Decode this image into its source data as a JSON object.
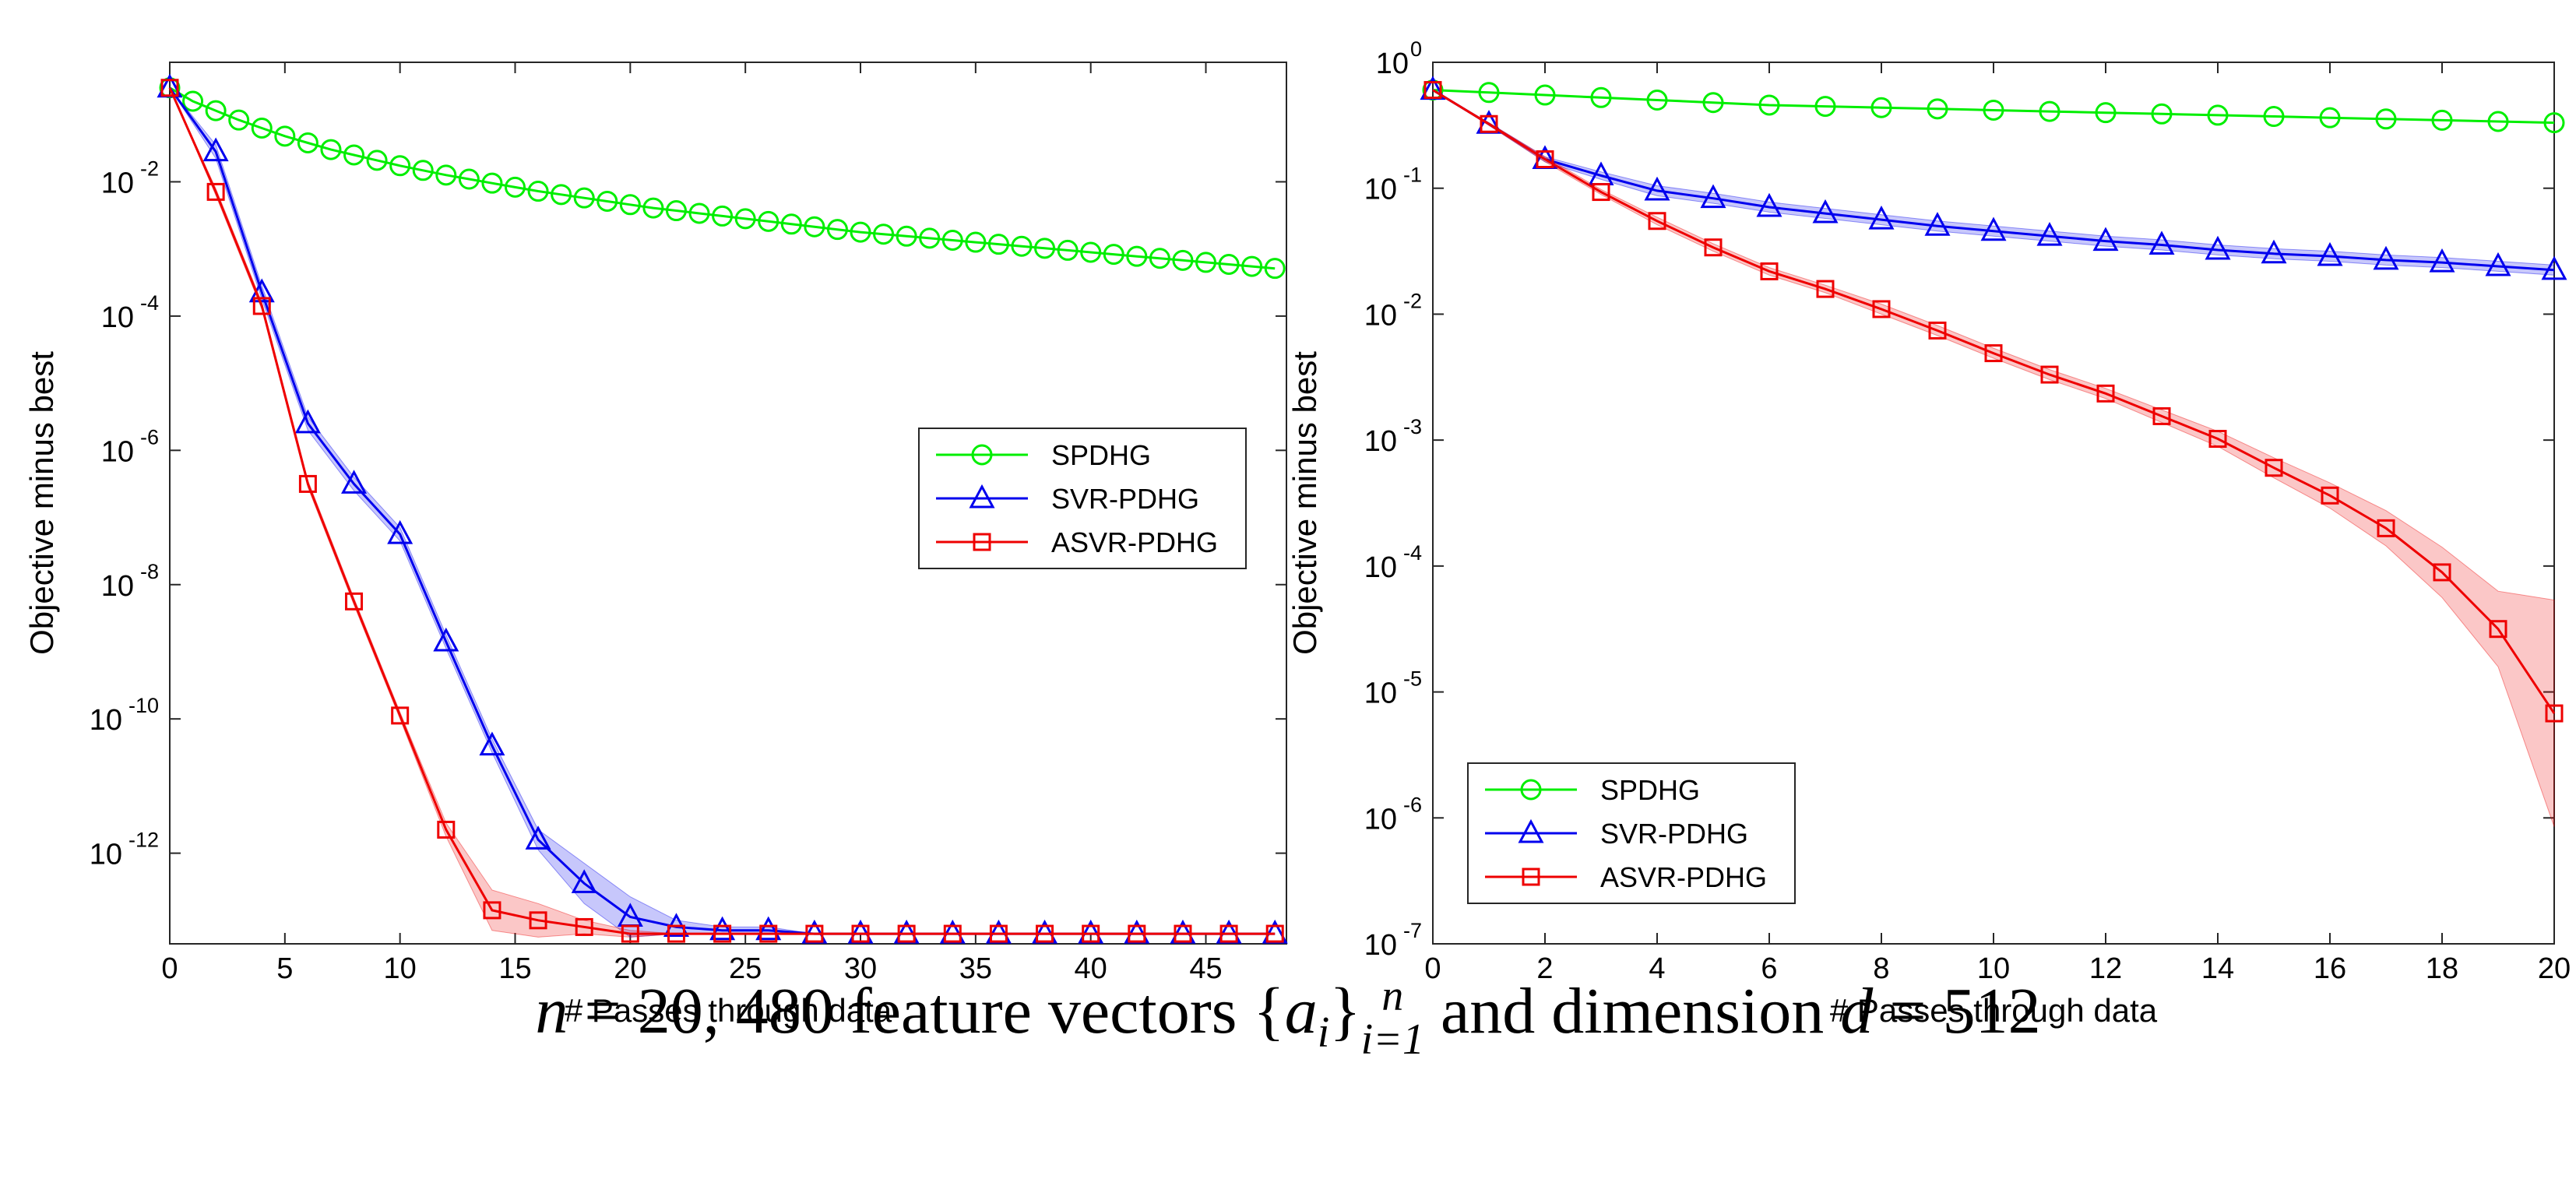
{
  "caption": {
    "n_var": "n",
    "n_eq": " = 20, 480 feature vectors {",
    "a_var": "a",
    "a_sub": "i",
    "close": "}",
    "set_sup": "n",
    "set_sub": "i=1",
    "dim_text": " and dimension ",
    "d_var": "d",
    "d_eq": " = 512"
  },
  "chart_data": [
    {
      "type": "line",
      "title": "",
      "xlabel": "# Passes through data",
      "ylabel": "Objective minus best",
      "yscale": "log",
      "xlim": [
        0,
        48.5
      ],
      "ylim_exp": [
        -13.35,
        -0.22
      ],
      "xticks": [
        0,
        5,
        10,
        15,
        20,
        25,
        30,
        35,
        40,
        45
      ],
      "yticks": [
        {
          "exp": -2,
          "label": "-2"
        },
        {
          "exp": -4,
          "label": "-4"
        },
        {
          "exp": -6,
          "label": "-6"
        },
        {
          "exp": -8,
          "label": "-8"
        },
        {
          "exp": -10,
          "label": "-10"
        },
        {
          "exp": -12,
          "label": "-12"
        }
      ],
      "tick_base": "10",
      "legend_position": "center-right",
      "series": [
        {
          "name": "SPDHG",
          "color": "#00ee00",
          "marker": "circle",
          "x": [
            0,
            1,
            2,
            3,
            4,
            5,
            6,
            7,
            8,
            9,
            10,
            11,
            12,
            13,
            14,
            15,
            16,
            17,
            18,
            19,
            20,
            21,
            22,
            23,
            24,
            25,
            26,
            27,
            28,
            29,
            30,
            31,
            32,
            33,
            34,
            35,
            36,
            37,
            38,
            39,
            40,
            41,
            42,
            43,
            44,
            45,
            46,
            47,
            48
          ],
          "log10_y": [
            -0.6,
            -0.8,
            -0.94,
            -1.08,
            -1.2,
            -1.32,
            -1.42,
            -1.52,
            -1.6,
            -1.68,
            -1.76,
            -1.83,
            -1.9,
            -1.96,
            -2.02,
            -2.08,
            -2.14,
            -2.19,
            -2.24,
            -2.29,
            -2.34,
            -2.39,
            -2.43,
            -2.47,
            -2.51,
            -2.55,
            -2.59,
            -2.63,
            -2.67,
            -2.71,
            -2.75,
            -2.78,
            -2.81,
            -2.84,
            -2.87,
            -2.9,
            -2.93,
            -2.96,
            -2.99,
            -3.02,
            -3.05,
            -3.08,
            -3.11,
            -3.14,
            -3.17,
            -3.2,
            -3.23,
            -3.26,
            -3.29
          ]
        },
        {
          "name": "SVR-PDHG",
          "color": "#0000ee",
          "marker": "triangle",
          "x": [
            0,
            2,
            4,
            6,
            8,
            10,
            12,
            14,
            16,
            18,
            20,
            22,
            24,
            26,
            28,
            30,
            32,
            34,
            36,
            38,
            40,
            42,
            44,
            46,
            48
          ],
          "log10_y": [
            -0.6,
            -1.55,
            -3.65,
            -5.6,
            -6.5,
            -7.25,
            -8.85,
            -10.4,
            -11.8,
            -12.45,
            -12.95,
            -13.1,
            -13.15,
            -13.15,
            -13.2,
            -13.2,
            -13.2,
            -13.2,
            -13.2,
            -13.2,
            -13.2,
            -13.2,
            -13.2,
            -13.2,
            -13.2
          ],
          "band": [
            0,
            0.1,
            0.1,
            0.1,
            0.1,
            0.1,
            0.1,
            0.1,
            0.15,
            0.3,
            0.3,
            0.1,
            0.05,
            0.05,
            0,
            0,
            0,
            0,
            0,
            0,
            0,
            0,
            0,
            0,
            0
          ]
        },
        {
          "name": "ASVR-PDHG",
          "color": "#ee0000",
          "marker": "square",
          "x": [
            0,
            2,
            4,
            6,
            8,
            10,
            12,
            14,
            16,
            18,
            20,
            22,
            24,
            26,
            28,
            30,
            32,
            34,
            36,
            38,
            40,
            42,
            44,
            46,
            48
          ],
          "log10_y": [
            -0.6,
            -2.15,
            -3.85,
            -6.5,
            -8.25,
            -9.95,
            -11.65,
            -12.85,
            -13.0,
            -13.1,
            -13.2,
            -13.2,
            -13.2,
            -13.2,
            -13.2,
            -13.2,
            -13.2,
            -13.2,
            -13.2,
            -13.2,
            -13.2,
            -13.2,
            -13.2,
            -13.2,
            -13.2
          ],
          "band": [
            0,
            0.05,
            0.05,
            0.05,
            0.05,
            0.05,
            0.1,
            0.3,
            0.25,
            0.1,
            0.05,
            0,
            0,
            0,
            0,
            0,
            0,
            0,
            0,
            0,
            0,
            0,
            0,
            0,
            0
          ]
        }
      ]
    },
    {
      "type": "line",
      "title": "",
      "xlabel": "# Passes through data",
      "ylabel": "Objective minus best",
      "yscale": "log",
      "xlim": [
        0,
        20
      ],
      "ylim_exp": [
        -7,
        0
      ],
      "xticks": [
        0,
        2,
        4,
        6,
        8,
        10,
        12,
        14,
        16,
        18,
        20
      ],
      "yticks": [
        {
          "exp": 0,
          "label": "0"
        },
        {
          "exp": -1,
          "label": "-1"
        },
        {
          "exp": -2,
          "label": "-2"
        },
        {
          "exp": -3,
          "label": "-3"
        },
        {
          "exp": -4,
          "label": "-4"
        },
        {
          "exp": -5,
          "label": "-5"
        },
        {
          "exp": -6,
          "label": "-6"
        },
        {
          "exp": -7,
          "label": "-7"
        }
      ],
      "tick_base": "10",
      "legend_position": "bottom-left",
      "series": [
        {
          "name": "SPDHG",
          "color": "#00ee00",
          "marker": "circle",
          "x": [
            0,
            1,
            2,
            3,
            4,
            5,
            6,
            7,
            8,
            9,
            10,
            11,
            12,
            13,
            14,
            15,
            16,
            17,
            18,
            19,
            20
          ],
          "log10_y": [
            -0.22,
            -0.24,
            -0.26,
            -0.28,
            -0.3,
            -0.32,
            -0.34,
            -0.35,
            -0.36,
            -0.37,
            -0.38,
            -0.39,
            -0.4,
            -0.41,
            -0.42,
            -0.43,
            -0.44,
            -0.45,
            -0.46,
            -0.47,
            -0.48
          ]
        },
        {
          "name": "SVR-PDHG",
          "color": "#0000ee",
          "marker": "triangle",
          "x": [
            0,
            1,
            2,
            3,
            4,
            5,
            6,
            7,
            8,
            9,
            10,
            11,
            12,
            13,
            14,
            15,
            16,
            17,
            18,
            19,
            20
          ],
          "log10_y": [
            -0.22,
            -0.49,
            -0.77,
            -0.9,
            -1.02,
            -1.08,
            -1.15,
            -1.2,
            -1.25,
            -1.3,
            -1.34,
            -1.38,
            -1.42,
            -1.45,
            -1.49,
            -1.52,
            -1.54,
            -1.57,
            -1.59,
            -1.62,
            -1.65
          ],
          "band": [
            0,
            0.01,
            0.02,
            0.03,
            0.04,
            0.04,
            0.04,
            0.04,
            0.04,
            0.04,
            0.04,
            0.04,
            0.04,
            0.04,
            0.04,
            0.04,
            0.04,
            0.04,
            0.04,
            0.04,
            0.04
          ]
        },
        {
          "name": "ASVR-PDHG",
          "color": "#ee0000",
          "marker": "square",
          "x": [
            0,
            1,
            2,
            3,
            4,
            5,
            6,
            7,
            8,
            9,
            10,
            11,
            12,
            13,
            14,
            15,
            16,
            17,
            18,
            19,
            20
          ],
          "log10_y": [
            -0.22,
            -0.49,
            -0.77,
            -1.03,
            -1.26,
            -1.47,
            -1.66,
            -1.8,
            -1.96,
            -2.13,
            -2.31,
            -2.48,
            -2.63,
            -2.81,
            -2.99,
            -3.22,
            -3.44,
            -3.7,
            -4.05,
            -4.5,
            -5.17
          ],
          "band": [
            0,
            0.01,
            0.02,
            0.02,
            0.03,
            0.03,
            0.03,
            0.03,
            0.04,
            0.04,
            0.04,
            0.04,
            0.04,
            0.05,
            0.06,
            0.08,
            0.1,
            0.14,
            0.2,
            0.3,
            0.9
          ]
        }
      ]
    }
  ]
}
